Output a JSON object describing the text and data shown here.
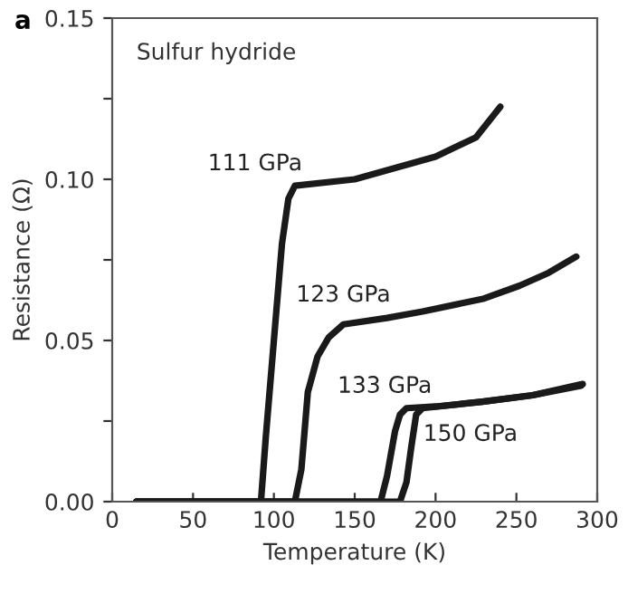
{
  "chart_data": {
    "type": "line",
    "title": "Sulfur hydride",
    "xlabel": "Temperature (K)",
    "ylabel": "Resistance (Ω)",
    "xlim": [
      0,
      300
    ],
    "ylim": [
      0,
      0.15
    ],
    "xticks": [
      0,
      50,
      100,
      150,
      200,
      250,
      300
    ],
    "yticks": [
      {
        "value": 0,
        "label": "0.00"
      },
      {
        "value": 0.025,
        "label": null
      },
      {
        "value": 0.05,
        "label": "0.05"
      },
      {
        "value": 0.075,
        "label": null
      },
      {
        "value": 0.1,
        "label": "0.10"
      },
      {
        "value": 0.125,
        "label": null
      },
      {
        "value": 0.15,
        "label": "0.15"
      }
    ],
    "grid": false,
    "legend": false,
    "marker": "none",
    "line_style": "solid",
    "series": [
      {
        "name": "111 GPa",
        "color": "#1a1a1a",
        "x": [
          15,
          92,
          95,
          100,
          105,
          109,
          113,
          150,
          200,
          225,
          240
        ],
        "values": [
          0,
          0,
          0.02,
          0.05,
          0.08,
          0.094,
          0.098,
          0.1,
          0.107,
          0.113,
          0.1225
        ]
      },
      {
        "name": "123 GPa",
        "color": "#1a1a1a",
        "x": [
          15,
          113,
          117,
          121,
          127,
          134,
          143,
          170,
          192,
          230,
          252,
          270,
          287
        ],
        "values": [
          0,
          0,
          0.01,
          0.034,
          0.045,
          0.051,
          0.055,
          0.057,
          0.059,
          0.063,
          0.067,
          0.071,
          0.076
        ]
      },
      {
        "name": "133 GPa",
        "color": "#1a1a1a",
        "x": [
          15,
          166,
          170,
          175,
          178,
          182,
          200,
          229,
          260,
          291
        ],
        "values": [
          0,
          0,
          0.008,
          0.022,
          0.027,
          0.029,
          0.0295,
          0.031,
          0.033,
          0.0365
        ]
      },
      {
        "name": "150 GPa",
        "color": "#1a1a1a",
        "x": [
          15,
          178,
          182,
          185,
          188,
          192,
          229,
          260,
          290
        ],
        "values": [
          0,
          0,
          0.006,
          0.017,
          0.027,
          0.029,
          0.031,
          0.033,
          0.036
        ]
      }
    ],
    "annotations": [
      "a"
    ]
  }
}
